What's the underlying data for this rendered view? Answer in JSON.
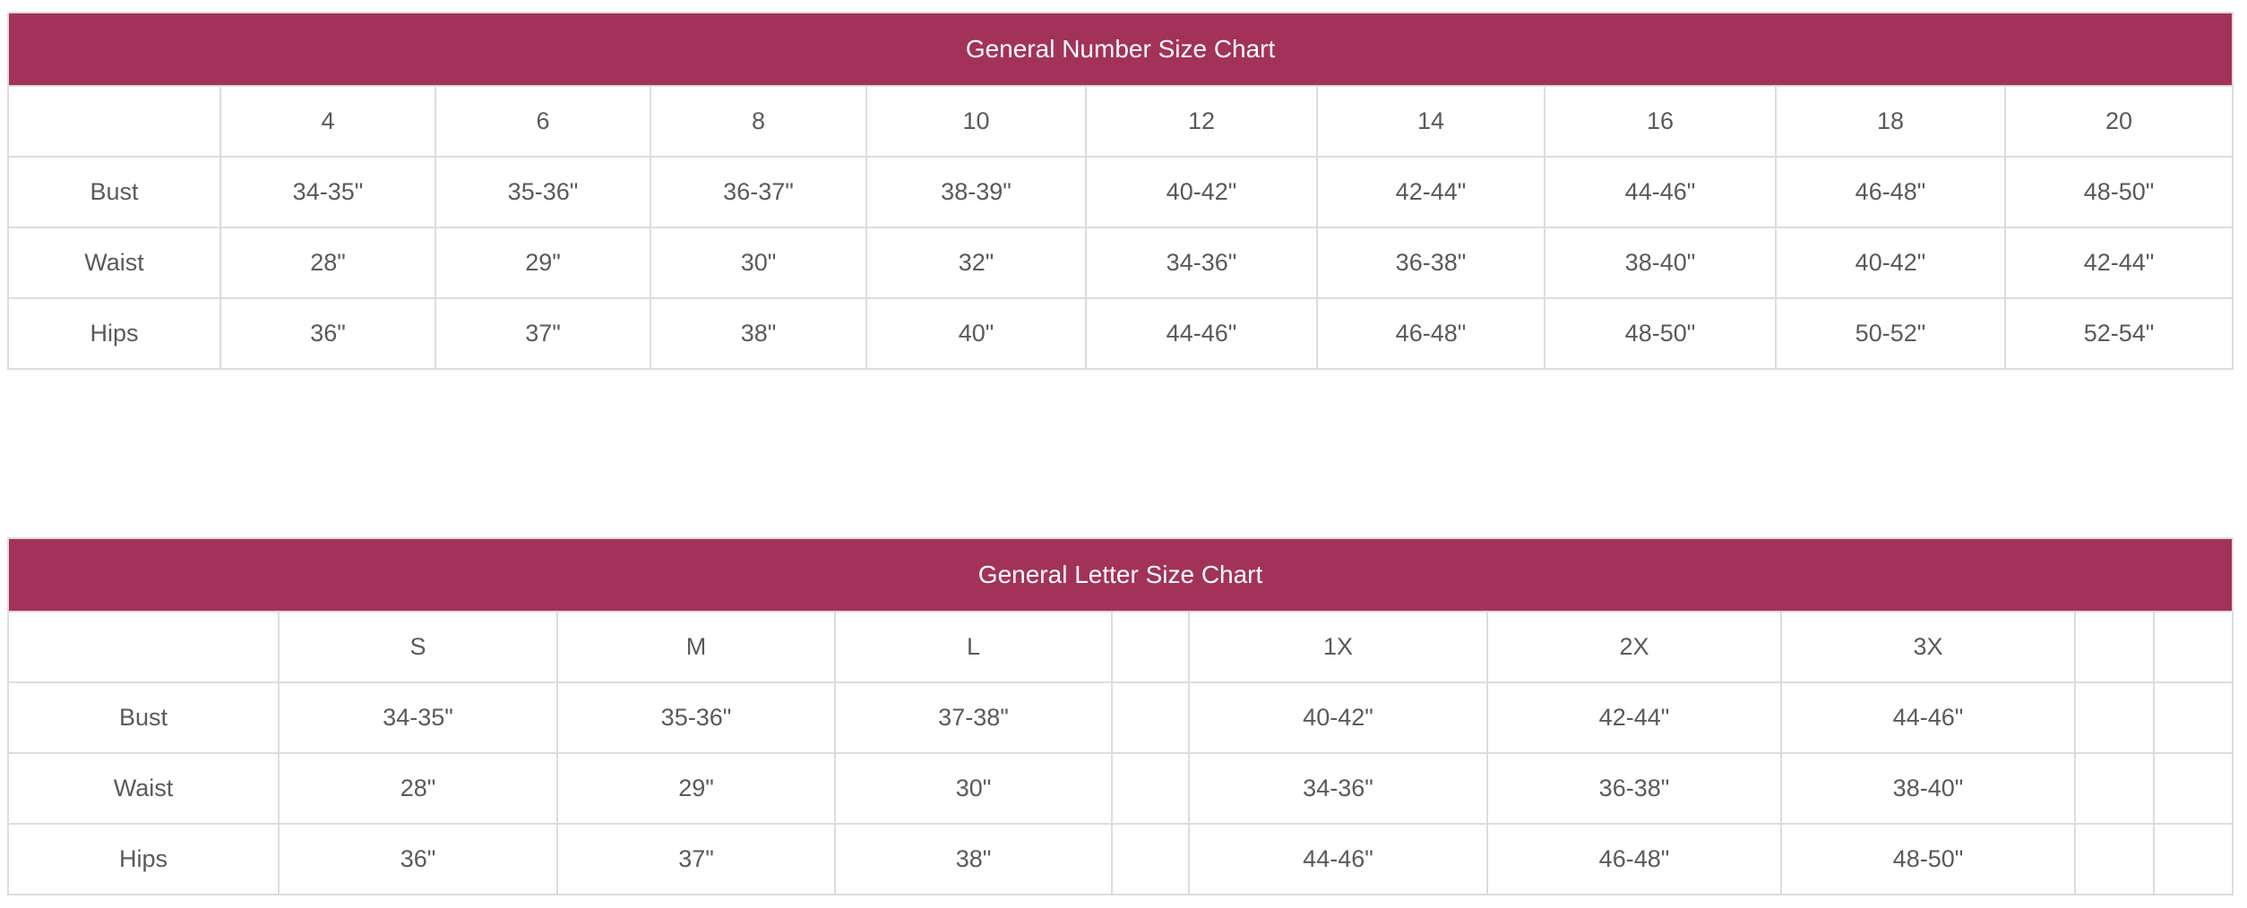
{
  "number_chart": {
    "title": "General Number Size Chart",
    "sizes": [
      "4",
      "6",
      "8",
      "10",
      "12",
      "14",
      "16",
      "18",
      "20"
    ],
    "rows": [
      {
        "label": "Bust",
        "values": [
          "34-35\"",
          "35-36\"",
          "36-37\"",
          "38-39\"",
          "40-42\"",
          "42-44\"",
          "44-46\"",
          "46-48\"",
          "48-50\""
        ]
      },
      {
        "label": "Waist",
        "values": [
          "28\"",
          "29\"",
          "30\"",
          "32\"",
          "34-36\"",
          "36-38\"",
          "38-40\"",
          "40-42\"",
          "42-44\""
        ]
      },
      {
        "label": "Hips",
        "values": [
          "36\"",
          "37\"",
          "38\"",
          "40\"",
          "44-46\"",
          "46-48\"",
          "48-50\"",
          "50-52\"",
          "52-54\""
        ]
      }
    ]
  },
  "letter_chart": {
    "title": "General Letter Size Chart",
    "sizes": [
      "S",
      "M",
      "L",
      "",
      "1X",
      "2X",
      "3X",
      "",
      ""
    ],
    "rows": [
      {
        "label": "Bust",
        "values": [
          "34-35\"",
          "35-36\"",
          "37-38\"",
          "",
          "40-42\"",
          "42-44\"",
          "44-46\"",
          "",
          ""
        ]
      },
      {
        "label": "Waist",
        "values": [
          "28\"",
          "29\"",
          "30\"",
          "",
          "34-36\"",
          "36-38\"",
          "38-40\"",
          "",
          ""
        ]
      },
      {
        "label": "Hips",
        "values": [
          "36\"",
          "37\"",
          "38\"",
          "",
          "44-46\"",
          "46-48\"",
          "48-50\"",
          "",
          ""
        ]
      }
    ]
  },
  "colors": {
    "header_bg": "#a3325a",
    "header_text": "#ffffff",
    "cell_text": "#5a5a5a",
    "border": "#dddddd"
  }
}
